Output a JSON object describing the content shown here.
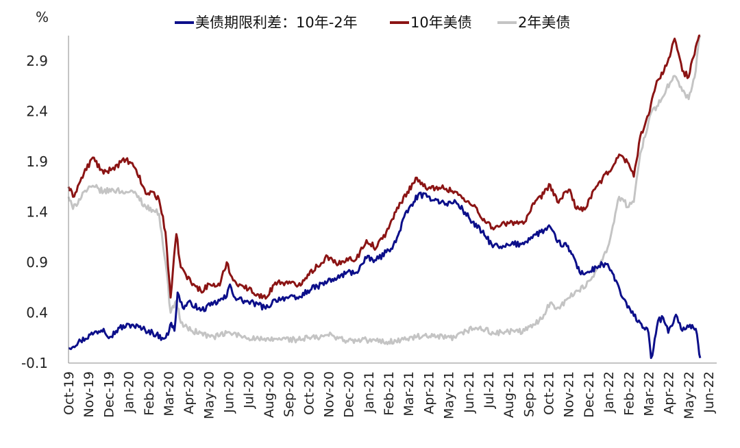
{
  "chart_data": {
    "type": "line",
    "title": "",
    "unit_label": "%",
    "xlabel": "",
    "ylabel": "%",
    "ylim": [
      -0.1,
      3.15
    ],
    "yticks": [
      -0.1,
      0.4,
      0.9,
      1.4,
      1.9,
      2.4,
      2.9
    ],
    "ytick_labels": [
      "-0.1",
      "0.4",
      "0.9",
      "1.4",
      "1.9",
      "2.4",
      "2.9"
    ],
    "negative_tick_color": "#e8382f",
    "grid": false,
    "legend_position": "top",
    "x_start": "2019-10-01",
    "x_end": "2022-06-30",
    "month_labels": [
      "Oct-19",
      "Nov-19",
      "Dec-19",
      "Jan-20",
      "Feb-20",
      "Mar-20",
      "Apr-20",
      "May-20",
      "Jun-20",
      "Jul-20",
      "Aug-20",
      "Sep-20",
      "Oct-20",
      "Nov-20",
      "Dec-20",
      "Jan-21",
      "Feb-21",
      "Mar-21",
      "Apr-21",
      "May-21",
      "Jun-21",
      "Jul-21",
      "Aug-21",
      "Sep-21",
      "Oct-21",
      "Nov-21",
      "Dec-21",
      "Jan-22",
      "Feb-22",
      "Mar-22",
      "Apr-22",
      "May-22",
      "Jun-22"
    ],
    "series": [
      {
        "name": "美债期限利差：10年-2年",
        "color": "#0c0f8a",
        "points": [
          [
            "2019-10-01",
            0.05
          ],
          [
            "2019-10-20",
            0.12
          ],
          [
            "2019-11-10",
            0.2
          ],
          [
            "2019-11-25",
            0.24
          ],
          [
            "2019-12-05",
            0.16
          ],
          [
            "2019-12-20",
            0.25
          ],
          [
            "2020-01-08",
            0.28
          ],
          [
            "2020-01-25",
            0.24
          ],
          [
            "2020-02-10",
            0.2
          ],
          [
            "2020-02-25",
            0.15
          ],
          [
            "2020-03-05",
            0.18
          ],
          [
            "2020-03-10",
            0.3
          ],
          [
            "2020-03-15",
            0.22
          ],
          [
            "2020-03-20",
            0.6
          ],
          [
            "2020-03-28",
            0.45
          ],
          [
            "2020-04-10",
            0.5
          ],
          [
            "2020-04-25",
            0.42
          ],
          [
            "2020-05-10",
            0.47
          ],
          [
            "2020-05-25",
            0.52
          ],
          [
            "2020-06-05",
            0.56
          ],
          [
            "2020-06-10",
            0.68
          ],
          [
            "2020-06-18",
            0.55
          ],
          [
            "2020-07-05",
            0.51
          ],
          [
            "2020-07-25",
            0.48
          ],
          [
            "2020-08-05",
            0.44
          ],
          [
            "2020-08-20",
            0.53
          ],
          [
            "2020-09-05",
            0.55
          ],
          [
            "2020-09-25",
            0.54
          ],
          [
            "2020-10-10",
            0.62
          ],
          [
            "2020-10-25",
            0.66
          ],
          [
            "2020-11-10",
            0.71
          ],
          [
            "2020-11-25",
            0.74
          ],
          [
            "2020-12-10",
            0.8
          ],
          [
            "2020-12-25",
            0.8
          ],
          [
            "2021-01-10",
            0.94
          ],
          [
            "2021-01-25",
            0.92
          ],
          [
            "2021-02-10",
            1.0
          ],
          [
            "2021-02-25",
            1.1
          ],
          [
            "2021-03-10",
            1.35
          ],
          [
            "2021-03-25,",
            1.5
          ],
          [
            "2021-04-01",
            1.57
          ],
          [
            "2021-04-15",
            1.55
          ],
          [
            "2021-04-30",
            1.52
          ],
          [
            "2021-05-15",
            1.48
          ],
          [
            "2021-05-30",
            1.5
          ],
          [
            "2021-06-10",
            1.42
          ],
          [
            "2021-06-25",
            1.3
          ],
          [
            "2021-07-10",
            1.2
          ],
          [
            "2021-07-25",
            1.08
          ],
          [
            "2021-08-10",
            1.04
          ],
          [
            "2021-08-25",
            1.08
          ],
          [
            "2021-09-10",
            1.08
          ],
          [
            "2021-09-25",
            1.15
          ],
          [
            "2021-10-10",
            1.2
          ],
          [
            "2021-10-25",
            1.25
          ],
          [
            "2021-11-05",
            1.1
          ],
          [
            "2021-11-20",
            1.06
          ],
          [
            "2021-12-01",
            0.95
          ],
          [
            "2021-12-10",
            0.8
          ],
          [
            "2021-12-25",
            0.8
          ],
          [
            "2022-01-05",
            0.85
          ],
          [
            "2022-01-15",
            0.88
          ],
          [
            "2022-01-25",
            0.85
          ],
          [
            "2022-02-05",
            0.72
          ],
          [
            "2022-02-15",
            0.55
          ],
          [
            "2022-03-01",
            0.4
          ],
          [
            "2022-03-15",
            0.3
          ],
          [
            "2022-03-28",
            0.2
          ],
          [
            "2022-04-01",
            -0.05
          ],
          [
            "2022-04-05",
            0.05
          ],
          [
            "2022-04-12",
            0.32
          ],
          [
            "2022-04-20",
            0.35
          ],
          [
            "2022-04-28",
            0.2
          ],
          [
            "2022-05-10",
            0.38
          ],
          [
            "2022-05-20",
            0.22
          ],
          [
            "2022-06-01",
            0.28
          ],
          [
            "2022-06-10",
            0.24
          ],
          [
            "2022-06-14",
            0.08
          ],
          [
            "2022-06-17",
            -0.05
          ]
        ]
      },
      {
        "name": "10年美债",
        "color": "#8b1414",
        "points": [
          [
            "2019-10-01",
            1.65
          ],
          [
            "2019-10-08",
            1.55
          ],
          [
            "2019-10-25",
            1.78
          ],
          [
            "2019-11-08",
            1.94
          ],
          [
            "2019-11-25",
            1.78
          ],
          [
            "2019-12-10",
            1.84
          ],
          [
            "2019-12-30",
            1.92
          ],
          [
            "2020-01-15",
            1.82
          ],
          [
            "2020-01-30",
            1.58
          ],
          [
            "2020-02-10",
            1.6
          ],
          [
            "2020-02-20",
            1.52
          ],
          [
            "2020-03-01",
            1.2
          ],
          [
            "2020-03-09",
            0.55
          ],
          [
            "2020-03-18",
            1.18
          ],
          [
            "2020-03-25",
            0.85
          ],
          [
            "2020-04-10",
            0.7
          ],
          [
            "2020-04-25",
            0.62
          ],
          [
            "2020-05-10",
            0.68
          ],
          [
            "2020-05-25",
            0.67
          ],
          [
            "2020-06-05",
            0.9
          ],
          [
            "2020-06-15",
            0.72
          ],
          [
            "2020-07-01",
            0.66
          ],
          [
            "2020-07-25",
            0.58
          ],
          [
            "2020-08-05",
            0.54
          ],
          [
            "2020-08-20",
            0.7
          ],
          [
            "2020-09-05",
            0.7
          ],
          [
            "2020-09-25",
            0.67
          ],
          [
            "2020-10-10",
            0.78
          ],
          [
            "2020-10-25",
            0.86
          ],
          [
            "2020-11-10",
            0.96
          ],
          [
            "2020-11-25",
            0.87
          ],
          [
            "2020-12-10",
            0.94
          ],
          [
            "2020-12-25",
            0.93
          ],
          [
            "2021-01-10",
            1.12
          ],
          [
            "2021-01-25",
            1.04
          ],
          [
            "2021-02-10",
            1.2
          ],
          [
            "2021-02-25",
            1.4
          ],
          [
            "2021-03-15",
            1.6
          ],
          [
            "2021-03-30",
            1.74
          ],
          [
            "2021-04-15",
            1.62
          ],
          [
            "2021-04-30",
            1.65
          ],
          [
            "2021-05-15",
            1.63
          ],
          [
            "2021-05-30",
            1.6
          ],
          [
            "2021-06-15",
            1.5
          ],
          [
            "2021-06-30",
            1.45
          ],
          [
            "2021-07-15",
            1.3
          ],
          [
            "2021-07-30",
            1.24
          ],
          [
            "2021-08-15",
            1.28
          ],
          [
            "2021-08-30",
            1.3
          ],
          [
            "2021-09-15",
            1.3
          ],
          [
            "2021-09-30",
            1.48
          ],
          [
            "2021-10-15",
            1.58
          ],
          [
            "2021-10-25",
            1.67
          ],
          [
            "2021-11-05",
            1.5
          ],
          [
            "2021-11-25",
            1.62
          ],
          [
            "2021-12-05",
            1.43
          ],
          [
            "2021-12-20",
            1.44
          ],
          [
            "2022-01-05",
            1.65
          ],
          [
            "2022-01-25",
            1.8
          ],
          [
            "2022-02-10",
            1.97
          ],
          [
            "2022-02-25",
            1.88
          ],
          [
            "2022-03-05",
            1.75
          ],
          [
            "2022-03-15",
            2.15
          ],
          [
            "2022-03-30",
            2.4
          ],
          [
            "2022-04-10",
            2.7
          ],
          [
            "2022-04-25",
            2.85
          ],
          [
            "2022-05-08",
            3.12
          ],
          [
            "2022-05-20",
            2.8
          ],
          [
            "2022-05-30",
            2.74
          ],
          [
            "2022-06-10",
            3.04
          ],
          [
            "2022-06-17",
            3.2
          ]
        ]
      },
      {
        "name": "2年美债",
        "color": "#c4c4c4",
        "points": [
          [
            "2019-10-01",
            1.55
          ],
          [
            "2019-10-08",
            1.43
          ],
          [
            "2019-10-25",
            1.6
          ],
          [
            "2019-11-10",
            1.65
          ],
          [
            "2019-11-25",
            1.6
          ],
          [
            "2019-12-10",
            1.62
          ],
          [
            "2019-12-30",
            1.6
          ],
          [
            "2020-01-15",
            1.58
          ],
          [
            "2020-01-30",
            1.45
          ],
          [
            "2020-02-10",
            1.42
          ],
          [
            "2020-02-20",
            1.38
          ],
          [
            "2020-03-01",
            0.9
          ],
          [
            "2020-03-09",
            0.4
          ],
          [
            "2020-03-18",
            0.52
          ],
          [
            "2020-03-25",
            0.3
          ],
          [
            "2020-04-10",
            0.22
          ],
          [
            "2020-04-25",
            0.2
          ],
          [
            "2020-05-10",
            0.16
          ],
          [
            "2020-05-25",
            0.17
          ],
          [
            "2020-06-05",
            0.2
          ],
          [
            "2020-06-15",
            0.19
          ],
          [
            "2020-07-01",
            0.16
          ],
          [
            "2020-07-25",
            0.14
          ],
          [
            "2020-08-05",
            0.12
          ],
          [
            "2020-08-20",
            0.14
          ],
          [
            "2020-09-05",
            0.14
          ],
          [
            "2020-09-25",
            0.13
          ],
          [
            "2020-10-10",
            0.15
          ],
          [
            "2020-10-25",
            0.15
          ],
          [
            "2020-11-10",
            0.18
          ],
          [
            "2020-11-25",
            0.16
          ],
          [
            "2020-12-10",
            0.12
          ],
          [
            "2020-12-25",
            0.12
          ],
          [
            "2021-01-10",
            0.13
          ],
          [
            "2021-01-25",
            0.12
          ],
          [
            "2021-02-10",
            0.11
          ],
          [
            "2021-02-25",
            0.12
          ],
          [
            "2021-03-15",
            0.14
          ],
          [
            "2021-03-30",
            0.16
          ],
          [
            "2021-04-15",
            0.16
          ],
          [
            "2021-04-30",
            0.16
          ],
          [
            "2021-05-15",
            0.15
          ],
          [
            "2021-05-30",
            0.15
          ],
          [
            "2021-06-15",
            0.22
          ],
          [
            "2021-06-30",
            0.25
          ],
          [
            "2021-07-15",
            0.23
          ],
          [
            "2021-07-30",
            0.19
          ],
          [
            "2021-08-15",
            0.21
          ],
          [
            "2021-08-30",
            0.21
          ],
          [
            "2021-09-15",
            0.22
          ],
          [
            "2021-09-30",
            0.28
          ],
          [
            "2021-10-15",
            0.38
          ],
          [
            "2021-10-25",
            0.5
          ],
          [
            "2021-11-05",
            0.45
          ],
          [
            "2021-11-25",
            0.55
          ],
          [
            "2021-12-05",
            0.62
          ],
          [
            "2021-12-20",
            0.66
          ],
          [
            "2022-01-05",
            0.82
          ],
          [
            "2022-01-25",
            1.08
          ],
          [
            "2022-02-10",
            1.55
          ],
          [
            "2022-02-25",
            1.45
          ],
          [
            "2022-03-05",
            1.5
          ],
          [
            "2022-03-15",
            1.98
          ],
          [
            "2022-03-30",
            2.35
          ],
          [
            "2022-04-10",
            2.45
          ],
          [
            "2022-04-25",
            2.62
          ],
          [
            "2022-05-08",
            2.75
          ],
          [
            "2022-05-20",
            2.6
          ],
          [
            "2022-05-30",
            2.52
          ],
          [
            "2022-06-10",
            2.8
          ],
          [
            "2022-06-17",
            3.2
          ]
        ]
      }
    ]
  }
}
